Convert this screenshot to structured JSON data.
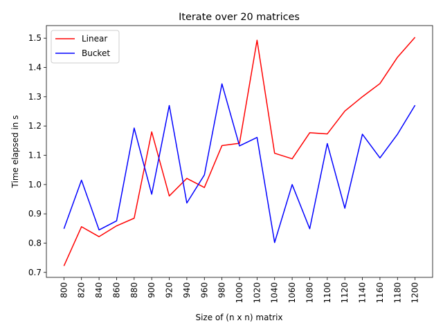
{
  "chart_data": {
    "type": "line",
    "title": "Iterate over 20 matrices",
    "xlabel": "Size of (n x n) matrix",
    "ylabel": "Time elapsed in s",
    "x": [
      800,
      820,
      840,
      860,
      880,
      900,
      920,
      940,
      960,
      980,
      1000,
      1020,
      1040,
      1060,
      1080,
      1100,
      1120,
      1140,
      1160,
      1180,
      1200
    ],
    "xlim": [
      780,
      1220
    ],
    "ylim": [
      0.683,
      1.543
    ],
    "yticks": [
      0.7,
      0.8,
      0.9,
      1.0,
      1.1,
      1.2,
      1.3,
      1.4,
      1.5
    ],
    "ytick_labels": [
      "0.7",
      "0.8",
      "0.9",
      "1.0",
      "1.1",
      "1.2",
      "1.3",
      "1.4",
      "1.5"
    ],
    "grid": false,
    "legend_position": "top-left",
    "series": [
      {
        "name": "Linear",
        "color": "#ff0000",
        "values": [
          0.722,
          0.856,
          0.822,
          0.859,
          0.885,
          1.18,
          0.961,
          1.021,
          0.99,
          1.133,
          1.141,
          1.493,
          1.107,
          1.088,
          1.177,
          1.173,
          1.251,
          1.3,
          1.345,
          1.435,
          1.503
        ]
      },
      {
        "name": "Bucket",
        "color": "#0000ff",
        "values": [
          0.849,
          1.015,
          0.845,
          0.876,
          1.193,
          0.967,
          1.27,
          0.937,
          1.033,
          1.344,
          1.132,
          1.161,
          0.802,
          1.0,
          0.849,
          1.14,
          0.919,
          1.172,
          1.091,
          1.172,
          1.271
        ]
      }
    ]
  }
}
